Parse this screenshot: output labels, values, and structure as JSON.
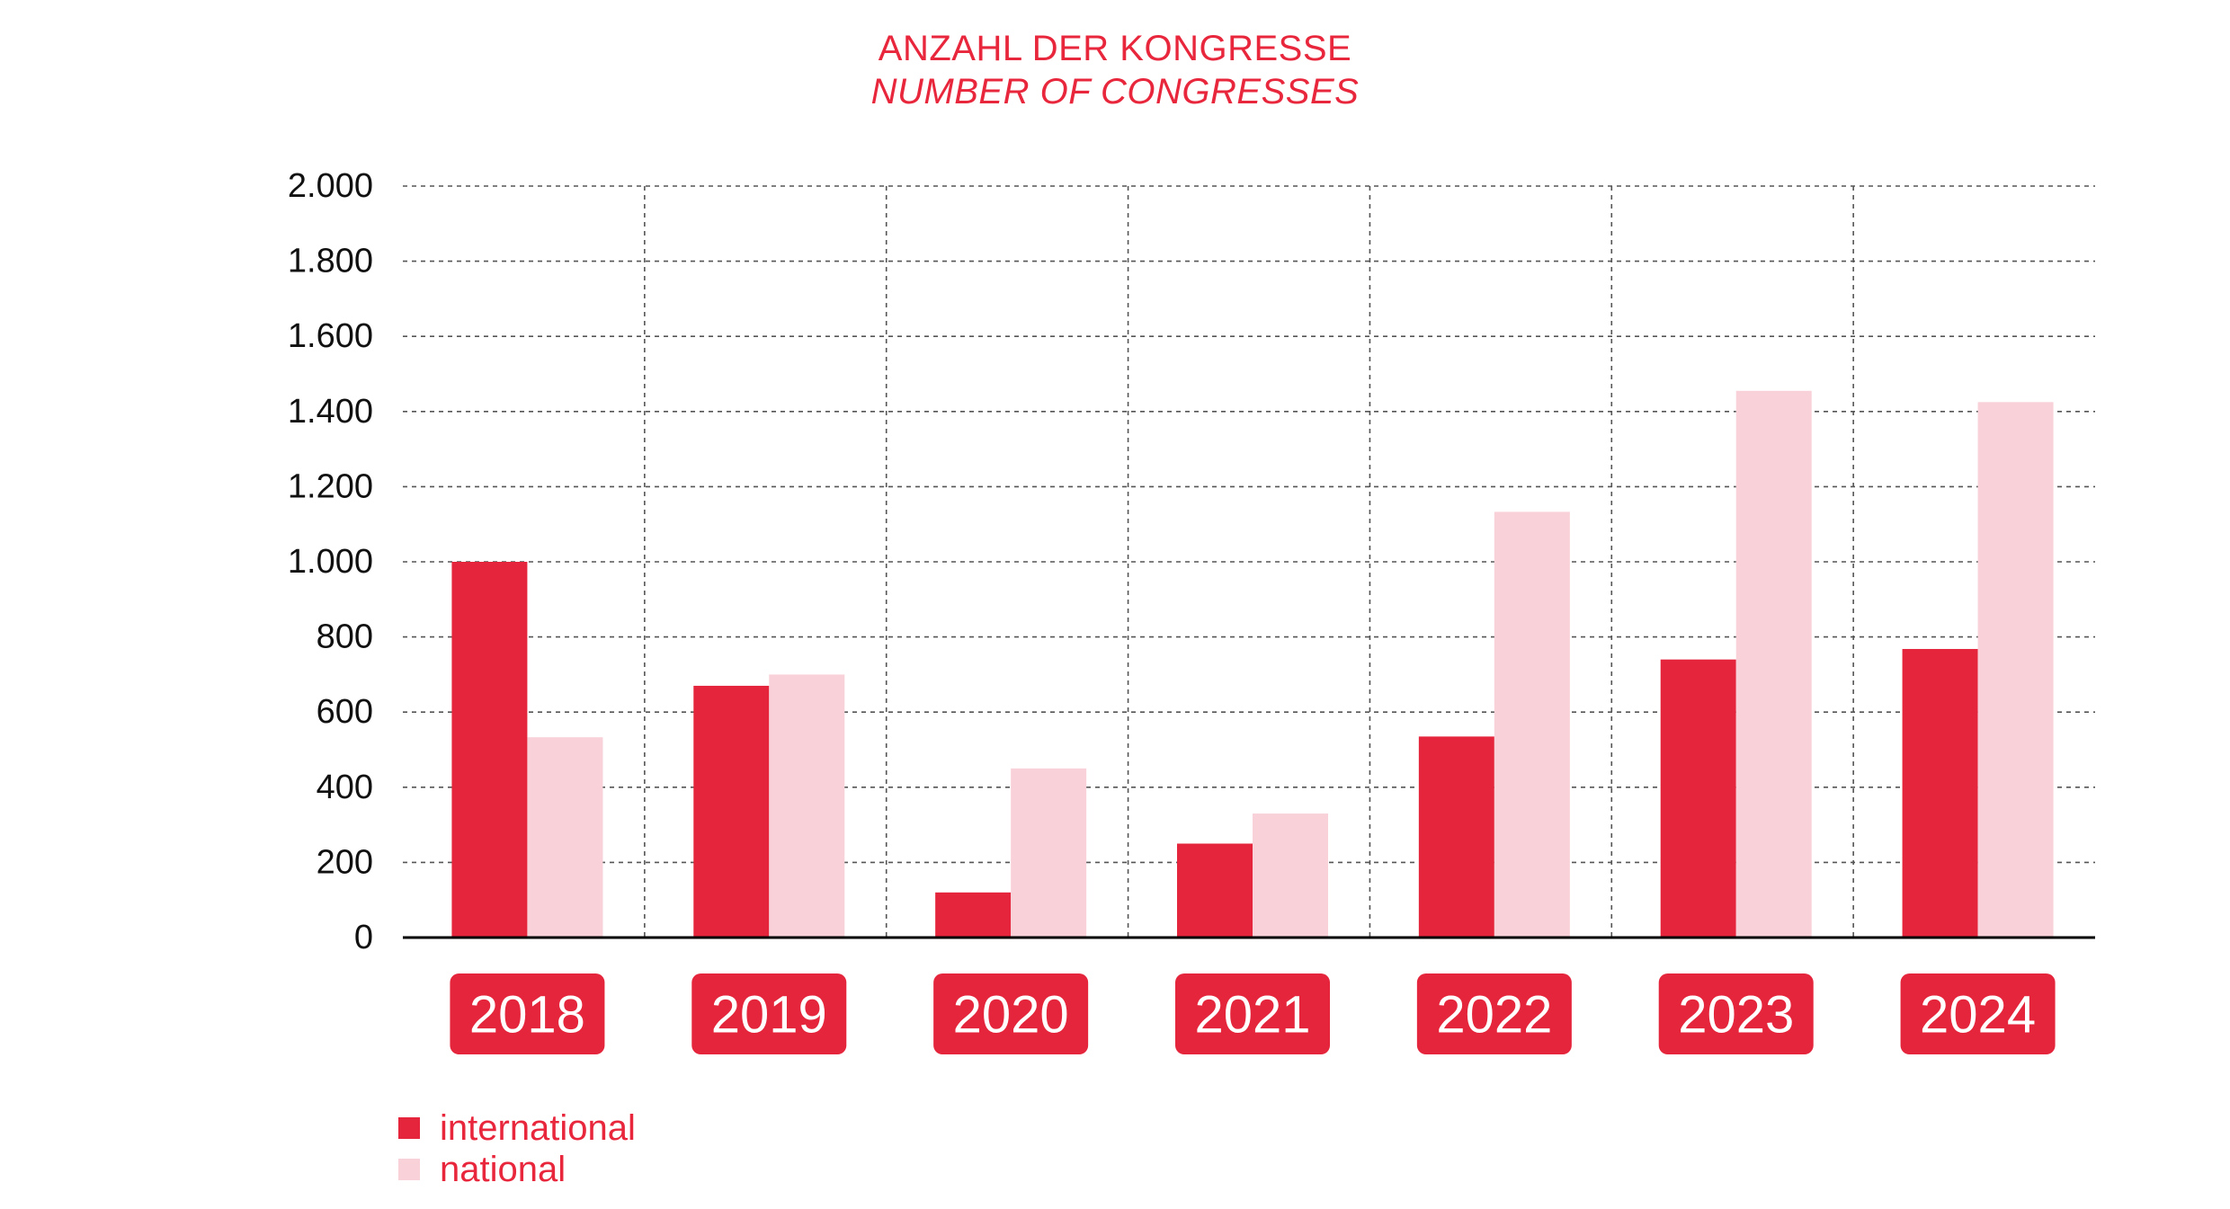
{
  "title": "ANZAHL DER KONGRESSE",
  "subtitle": "NUMBER OF CONGRESSES",
  "colors": {
    "international": "#e4253b",
    "national": "#f9d1d8",
    "accent": "#e8263c",
    "grid": "#555555",
    "axis": "#000000"
  },
  "legend": {
    "international": "international",
    "national": "national"
  },
  "chart_data": {
    "type": "bar",
    "title": "ANZAHL DER KONGRESSE",
    "subtitle": "NUMBER OF CONGRESSES",
    "categories": [
      "2018",
      "2019",
      "2020",
      "2021",
      "2022",
      "2023",
      "2024"
    ],
    "series": [
      {
        "name": "international",
        "values": [
          1000,
          670,
          120,
          250,
          535,
          740,
          768
        ]
      },
      {
        "name": "national",
        "values": [
          533,
          700,
          450,
          330,
          1133,
          1455,
          1425
        ]
      }
    ],
    "ylim": [
      0,
      2000
    ],
    "yticks": [
      0,
      200,
      400,
      600,
      800,
      1000,
      1200,
      1400,
      1600,
      1800,
      2000
    ],
    "ytick_labels": [
      "0",
      "200",
      "400",
      "600",
      "800",
      "1.000",
      "1.200",
      "1.400",
      "1.600",
      "1.800",
      "2.000"
    ],
    "grid": true,
    "legend_position": "bottom-left"
  }
}
